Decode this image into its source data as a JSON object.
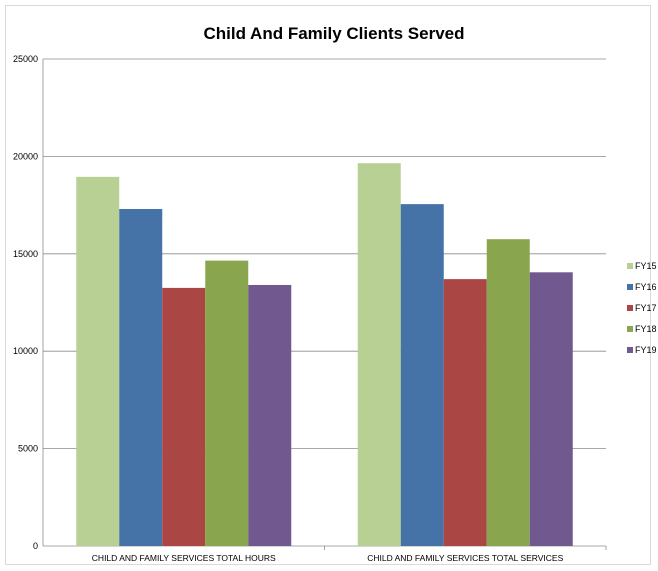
{
  "chart_data": {
    "type": "bar",
    "title": "Child And Family Clients Served",
    "xlabel": "",
    "ylabel": "",
    "categories": [
      "CHILD AND FAMILY SERVICES TOTAL HOURS",
      "CHILD AND FAMILY SERVICES TOTAL SERVICES"
    ],
    "series": [
      {
        "name": "FY15",
        "color": "#b9d095",
        "values": [
          18950,
          19650
        ]
      },
      {
        "name": "FY16",
        "color": "#4573a7",
        "values": [
          17300,
          17550
        ]
      },
      {
        "name": "FY17",
        "color": "#aa4643",
        "values": [
          13250,
          13700
        ]
      },
      {
        "name": "FY18",
        "color": "#89a54e",
        "values": [
          14650,
          15750
        ]
      },
      {
        "name": "FY19",
        "color": "#71588f",
        "values": [
          13400,
          14050
        ]
      }
    ],
    "ylim": [
      0,
      25000
    ],
    "yticks": [
      0,
      5000,
      10000,
      15000,
      20000,
      25000
    ],
    "grid": true,
    "legend": "right"
  }
}
